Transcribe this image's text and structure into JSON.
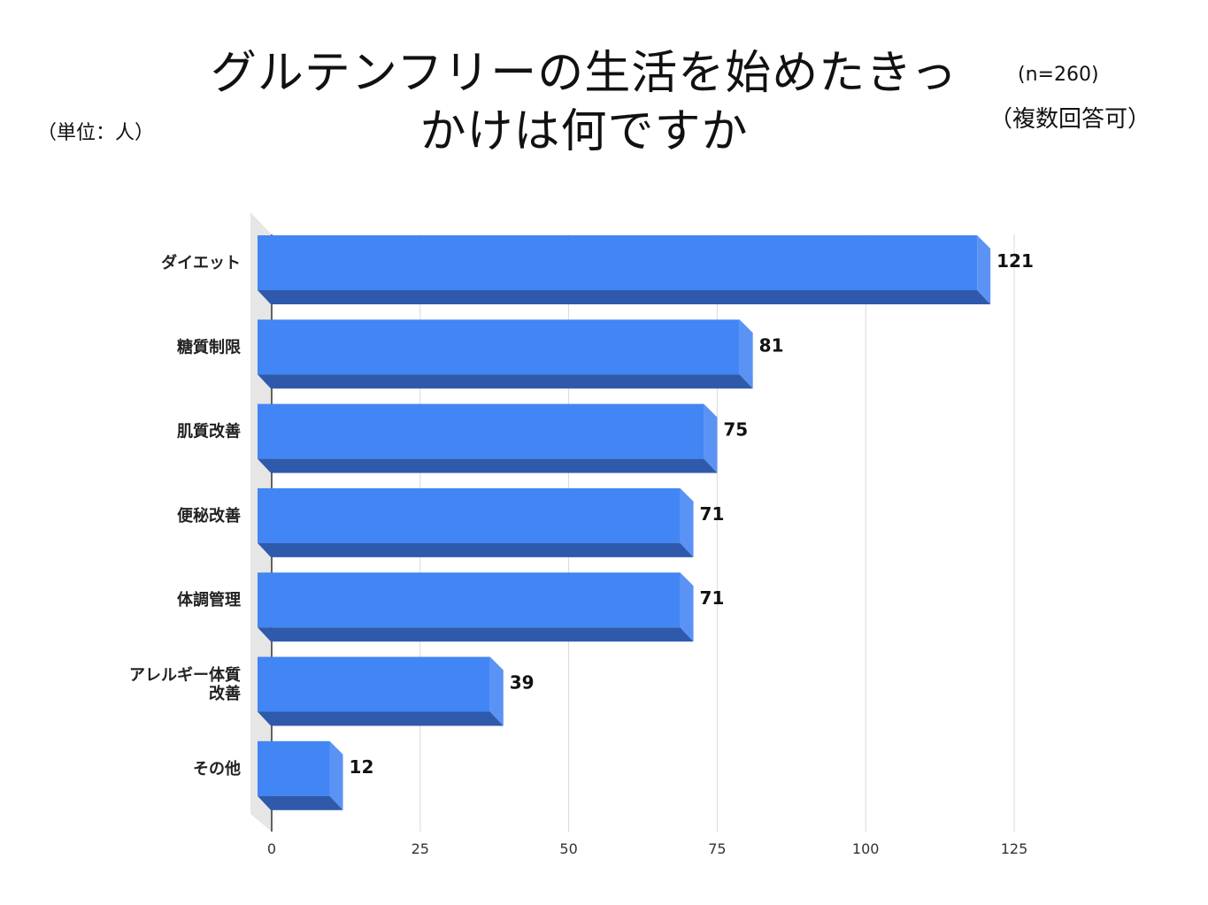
{
  "header": {
    "title_line1": "グルテンフリーの生活を始めたきっ",
    "title_line2": "かけは何ですか",
    "unit_note": "（単位：人）",
    "n_note": "(n=260)",
    "multi_note": "（複数回答可）"
  },
  "chart_data": {
    "type": "bar",
    "orientation": "horizontal",
    "title": "グルテンフリーの生活を始めたきっかけは何ですか",
    "categories": [
      [
        "ダイエット"
      ],
      [
        "糖質制限"
      ],
      [
        "肌質改善"
      ],
      [
        "便秘改善"
      ],
      [
        "体調管理"
      ],
      [
        "アレルギー体質",
        "改善"
      ],
      [
        "その他"
      ]
    ],
    "values": [
      121,
      81,
      75,
      71,
      71,
      39,
      12
    ],
    "xlim": [
      0,
      125
    ],
    "ticks": [
      0,
      25,
      50,
      75,
      100,
      125
    ],
    "grid": true,
    "colors": {
      "bar": "#4285f4",
      "bar_side": "#5b93f5",
      "bar_bottom": "#2f5aab",
      "grid": "#d9d9d9",
      "wall": "#e6e6e6"
    }
  }
}
